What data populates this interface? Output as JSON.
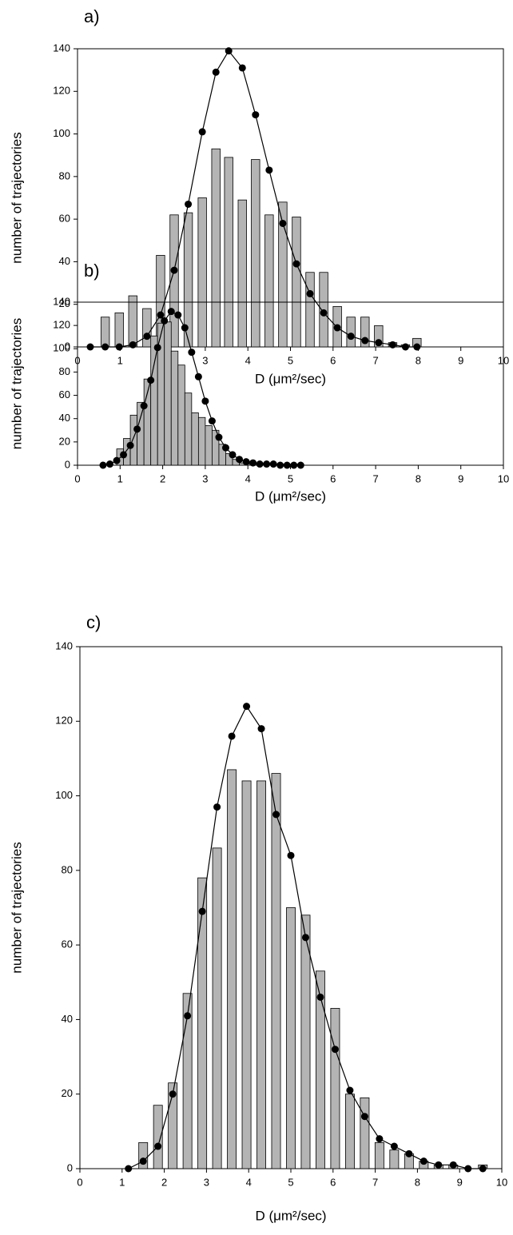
{
  "chart_data": [
    {
      "type": "bar",
      "title": "a)",
      "xlabel": "D (μm²/sec)",
      "ylabel": "number of trajectories",
      "xlim": [
        0,
        10
      ],
      "xticks": [
        0,
        1,
        2,
        3,
        4,
        5,
        6,
        7,
        8,
        9,
        10
      ],
      "ylim": [
        0,
        140
      ],
      "yticks": [
        0,
        20,
        40,
        60,
        80,
        100,
        120,
        140
      ],
      "series": [
        {
          "kind": "bar",
          "color": "#b4b4b4",
          "x": [
            0.65,
            0.98,
            1.3,
            1.63,
            1.95,
            2.27,
            2.6,
            2.93,
            3.25,
            3.55,
            3.87,
            4.18,
            4.5,
            4.82,
            5.14,
            5.46,
            5.78,
            6.1,
            6.42,
            6.75,
            7.07,
            7.4,
            7.7,
            7.97
          ],
          "values": [
            14,
            16,
            24,
            18,
            43,
            62,
            63,
            70,
            93,
            89,
            69,
            88,
            62,
            68,
            61,
            35,
            35,
            19,
            14,
            14,
            10,
            2,
            1,
            4
          ]
        },
        {
          "kind": "line",
          "color": "#000000",
          "x": [
            0.3,
            0.65,
            0.98,
            1.3,
            1.63,
            1.95,
            2.27,
            2.6,
            2.93,
            3.25,
            3.55,
            3.87,
            4.18,
            4.5,
            4.82,
            5.14,
            5.46,
            5.78,
            6.1,
            6.42,
            6.75,
            7.07,
            7.4,
            7.7,
            7.97
          ],
          "values": [
            0,
            0,
            0,
            1,
            5,
            15,
            36,
            67,
            101,
            129,
            139,
            131,
            109,
            83,
            58,
            39,
            25,
            16,
            9,
            5,
            3,
            2,
            1,
            0,
            0
          ]
        }
      ]
    },
    {
      "type": "bar",
      "title": "b)",
      "xlabel": "D (μm²/sec)",
      "ylabel": "number of trajectories",
      "xlim": [
        0,
        10
      ],
      "xticks": [
        0,
        1,
        2,
        3,
        4,
        5,
        6,
        7,
        8,
        9,
        10
      ],
      "ylim": [
        0,
        140
      ],
      "yticks": [
        0,
        20,
        40,
        60,
        80,
        100,
        120,
        140
      ],
      "series": [
        {
          "kind": "bar",
          "color": "#b4b4b4",
          "x": [
            1.0,
            1.16,
            1.32,
            1.48,
            1.64,
            1.8,
            1.96,
            2.12,
            2.28,
            2.44,
            2.6,
            2.76,
            2.92,
            3.08,
            3.24,
            3.4,
            3.56,
            3.72,
            3.88,
            4.04
          ],
          "values": [
            14,
            23,
            43,
            54,
            74,
            111,
            122,
            123,
            98,
            86,
            62,
            45,
            41,
            34,
            30,
            18,
            10,
            5,
            2,
            1
          ]
        },
        {
          "kind": "line",
          "color": "#000000",
          "x": [
            0.6,
            0.76,
            0.92,
            1.08,
            1.24,
            1.4,
            1.56,
            1.72,
            1.88,
            2.04,
            2.2,
            2.36,
            2.52,
            2.68,
            2.84,
            3.0,
            3.16,
            3.32,
            3.48,
            3.64,
            3.8,
            3.96,
            4.12,
            4.28,
            4.44,
            4.6,
            4.76,
            4.92,
            5.08,
            5.24
          ],
          "values": [
            0,
            1,
            4,
            9,
            17,
            31,
            51,
            73,
            101,
            124,
            132,
            129,
            118,
            97,
            76,
            55,
            38,
            24,
            15,
            9,
            5,
            3,
            2,
            1,
            1,
            1,
            0,
            0,
            0,
            0
          ]
        }
      ]
    },
    {
      "type": "bar",
      "title": "c)",
      "xlabel": "D (μm²/sec)",
      "ylabel": "number of trajectories",
      "xlim": [
        0,
        10
      ],
      "xticks": [
        0,
        1,
        2,
        3,
        4,
        5,
        6,
        7,
        8,
        9,
        10
      ],
      "ylim": [
        0,
        140
      ],
      "yticks": [
        0,
        20,
        40,
        60,
        80,
        100,
        120,
        140
      ],
      "series": [
        {
          "kind": "bar",
          "color": "#b4b4b4",
          "x": [
            1.5,
            1.85,
            2.2,
            2.55,
            2.9,
            3.25,
            3.6,
            3.95,
            4.3,
            4.65,
            5.0,
            5.35,
            5.7,
            6.05,
            6.4,
            6.75,
            7.1,
            7.45,
            7.8,
            8.15,
            8.5,
            8.85,
            9.2,
            9.55
          ],
          "values": [
            7,
            17,
            23,
            47,
            78,
            86,
            107,
            104,
            104,
            106,
            70,
            68,
            53,
            43,
            20,
            19,
            7,
            5,
            4,
            2,
            1,
            1,
            0,
            1
          ]
        },
        {
          "kind": "line",
          "color": "#000000",
          "x": [
            1.15,
            1.5,
            1.85,
            2.2,
            2.55,
            2.9,
            3.25,
            3.6,
            3.95,
            4.3,
            4.65,
            5.0,
            5.35,
            5.7,
            6.05,
            6.4,
            6.75,
            7.1,
            7.45,
            7.8,
            8.15,
            8.5,
            8.85,
            9.2,
            9.55
          ],
          "values": [
            0,
            2,
            6,
            20,
            41,
            69,
            97,
            116,
            124,
            118,
            95,
            84,
            62,
            46,
            32,
            21,
            14,
            8,
            6,
            4,
            2,
            1,
            1,
            0,
            0
          ]
        }
      ]
    }
  ]
}
